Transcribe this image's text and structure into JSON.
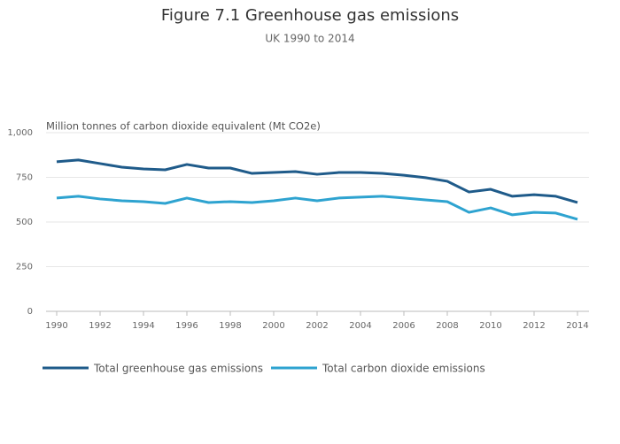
{
  "chart_data": {
    "type": "line",
    "title": "Figure 7.1 Greenhouse gas emissions",
    "subtitle": "UK 1990 to 2014",
    "y_label": "Million tonnes of carbon dioxide equivalent (Mt CO2e)",
    "x": [
      1990,
      1991,
      1992,
      1993,
      1994,
      1995,
      1996,
      1997,
      1998,
      1999,
      2000,
      2001,
      2002,
      2003,
      2004,
      2005,
      2006,
      2007,
      2008,
      2009,
      2010,
      2011,
      2012,
      2013,
      2014
    ],
    "series": [
      {
        "name": "Total greenhouse gas emissions",
        "color": "#1f5b8a",
        "values": [
          837,
          847,
          827,
          807,
          797,
          792,
          822,
          802,
          802,
          772,
          777,
          782,
          767,
          777,
          777,
          772,
          762,
          748,
          728,
          668,
          683,
          644,
          653,
          644,
          609
        ]
      },
      {
        "name": "Total carbon dioxide emissions",
        "color": "#2ea3d0",
        "values": [
          634,
          644,
          629,
          619,
          614,
          604,
          634,
          609,
          614,
          609,
          619,
          634,
          619,
          634,
          639,
          644,
          634,
          624,
          614,
          554,
          579,
          540,
          554,
          550,
          515
        ]
      }
    ],
    "xlim": [
      1990,
      2014
    ],
    "xticks": [
      1990,
      1992,
      1994,
      1996,
      1998,
      2000,
      2002,
      2004,
      2006,
      2008,
      2010,
      2012,
      2014
    ],
    "ylim": [
      0,
      1000
    ],
    "yticks": [
      0,
      250,
      500,
      750,
      {
        "value": 1000,
        "label": "1,000"
      }
    ],
    "grid": true,
    "legend": "bottom"
  }
}
